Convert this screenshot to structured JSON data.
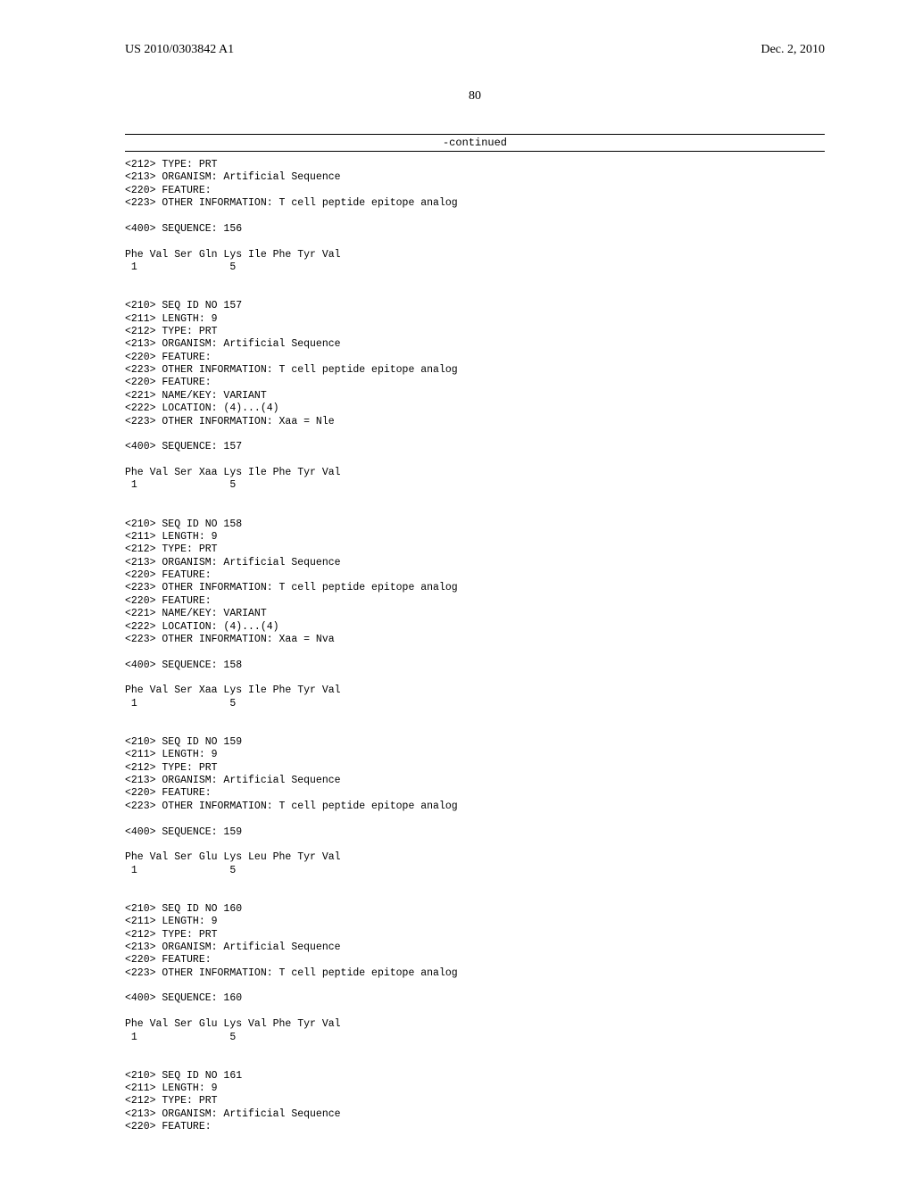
{
  "header": {
    "publication_number": "US 2010/0303842 A1",
    "publication_date": "Dec. 2, 2010"
  },
  "page_number": "80",
  "continued_label": "-continued",
  "blocks": [
    {
      "lines": [
        "<212> TYPE: PRT",
        "<213> ORGANISM: Artificial Sequence",
        "<220> FEATURE:",
        "<223> OTHER INFORMATION: T cell peptide epitope analog",
        "",
        "<400> SEQUENCE: 156",
        "",
        "Phe Val Ser Gln Lys Ile Phe Tyr Val",
        " 1               5",
        "",
        "",
        "<210> SEQ ID NO 157",
        "<211> LENGTH: 9",
        "<212> TYPE: PRT",
        "<213> ORGANISM: Artificial Sequence",
        "<220> FEATURE:",
        "<223> OTHER INFORMATION: T cell peptide epitope analog",
        "<220> FEATURE:",
        "<221> NAME/KEY: VARIANT",
        "<222> LOCATION: (4)...(4)",
        "<223> OTHER INFORMATION: Xaa = Nle",
        "",
        "<400> SEQUENCE: 157",
        "",
        "Phe Val Ser Xaa Lys Ile Phe Tyr Val",
        " 1               5",
        "",
        "",
        "<210> SEQ ID NO 158",
        "<211> LENGTH: 9",
        "<212> TYPE: PRT",
        "<213> ORGANISM: Artificial Sequence",
        "<220> FEATURE:",
        "<223> OTHER INFORMATION: T cell peptide epitope analog",
        "<220> FEATURE:",
        "<221> NAME/KEY: VARIANT",
        "<222> LOCATION: (4)...(4)",
        "<223> OTHER INFORMATION: Xaa = Nva",
        "",
        "<400> SEQUENCE: 158",
        "",
        "Phe Val Ser Xaa Lys Ile Phe Tyr Val",
        " 1               5",
        "",
        "",
        "<210> SEQ ID NO 159",
        "<211> LENGTH: 9",
        "<212> TYPE: PRT",
        "<213> ORGANISM: Artificial Sequence",
        "<220> FEATURE:",
        "<223> OTHER INFORMATION: T cell peptide epitope analog",
        "",
        "<400> SEQUENCE: 159",
        "",
        "Phe Val Ser Glu Lys Leu Phe Tyr Val",
        " 1               5",
        "",
        "",
        "<210> SEQ ID NO 160",
        "<211> LENGTH: 9",
        "<212> TYPE: PRT",
        "<213> ORGANISM: Artificial Sequence",
        "<220> FEATURE:",
        "<223> OTHER INFORMATION: T cell peptide epitope analog",
        "",
        "<400> SEQUENCE: 160",
        "",
        "Phe Val Ser Glu Lys Val Phe Tyr Val",
        " 1               5",
        "",
        "",
        "<210> SEQ ID NO 161",
        "<211> LENGTH: 9",
        "<212> TYPE: PRT",
        "<213> ORGANISM: Artificial Sequence",
        "<220> FEATURE:"
      ]
    }
  ]
}
